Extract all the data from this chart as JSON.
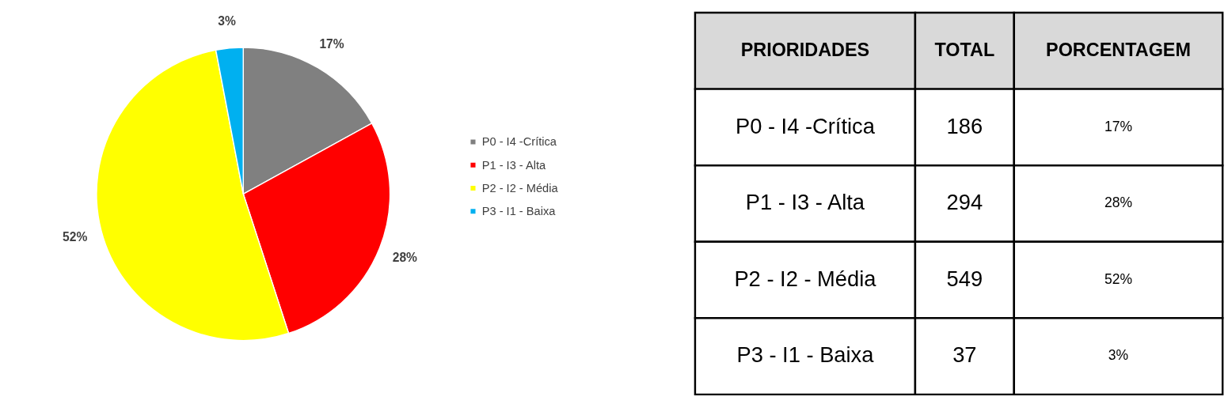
{
  "chart_data": [
    {
      "type": "pie",
      "categories": [
        "P0 - I4 -Crítica",
        "P1 - I3 - Alta",
        "P2 - I2 - Média",
        "P3 - I1 - Baixa"
      ],
      "values": [
        17,
        28,
        52,
        3
      ],
      "colors": [
        "#808080",
        "#ff0000",
        "#ffff00",
        "#00b0f0"
      ],
      "value_labels": [
        "17%",
        "28%",
        "52%",
        "3%"
      ],
      "legend": "right"
    },
    {
      "type": "other",
      "annotations": [
        "PRIORIDADES",
        "TOTAL",
        "PORCENTAGEM"
      ],
      "categories": [
        "P0 - I4 -Crítica",
        "P1 - I3 - Alta",
        "P2 - I2 - Média",
        "P3 - I1 - Baixa"
      ],
      "values": [
        186,
        294,
        549,
        37
      ],
      "data_labels": true
    }
  ]
}
